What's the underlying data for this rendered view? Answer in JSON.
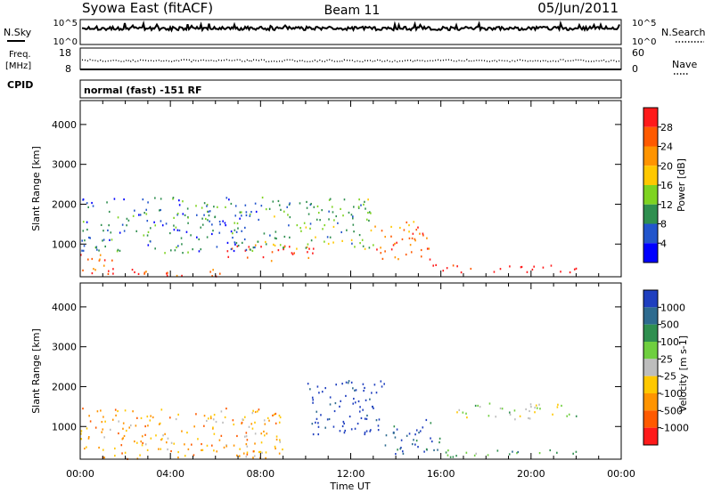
{
  "header": {
    "title_left": "Syowa East (fitACF)",
    "title_center": "Beam 11",
    "title_right": "05/Jun/2011"
  },
  "noise_panel": {
    "left_label": "N.Sky",
    "right_label": "N.Search",
    "left_ticks": [
      "10^5",
      "10^0"
    ],
    "right_ticks": [
      "10^5",
      "10^0"
    ]
  },
  "freq_panel": {
    "left_label_1": "Freq.",
    "left_label_2": "[MHz]",
    "right_label": "Nave",
    "left_ticks": [
      "18",
      "8"
    ],
    "right_ticks": [
      "60",
      "0"
    ]
  },
  "cpid": {
    "label": "CPID",
    "value": "normal (fast) -151 RF"
  },
  "chart_data": [
    {
      "type": "heatmap",
      "name": "Power",
      "ylabel": "Slant Range [km]",
      "xlabel": "",
      "xlim": [
        "00:00",
        "24:00"
      ],
      "ylim": [
        180,
        4600
      ],
      "y_ticks": [
        "4000",
        "3000",
        "2000",
        "1000"
      ],
      "colorbar_label": "Power [dB]",
      "colorbar_ticks": [
        "28",
        "24",
        "20",
        "16",
        "12",
        "8",
        "4"
      ],
      "colorbar_colors": [
        "#ff1a1a",
        "#ff5a00",
        "#ff9400",
        "#ffc800",
        "#7ed321",
        "#2f8f4f",
        "#2255cc",
        "#0000ff"
      ],
      "echo_regions": [
        {
          "t0": 0.0,
          "t1": 1.5,
          "r0": 200,
          "r1": 800,
          "level": 1
        },
        {
          "t0": 1.0,
          "t1": 6.5,
          "r0": 200,
          "r1": 400,
          "level": 1
        },
        {
          "t0": 6.5,
          "t1": 10.5,
          "r0": 600,
          "r1": 1000,
          "level": 1
        },
        {
          "t0": 8.0,
          "t1": 13.0,
          "r0": 900,
          "r1": 2200,
          "level": 5
        },
        {
          "t0": 13.0,
          "t1": 15.5,
          "r0": 600,
          "r1": 1600,
          "level": 2
        },
        {
          "t0": 15.5,
          "t1": 22.0,
          "r0": 300,
          "r1": 500,
          "level": 0
        },
        {
          "t0": 0.0,
          "t1": 8.0,
          "r0": 800,
          "r1": 2200,
          "level": 6
        }
      ]
    },
    {
      "type": "heatmap",
      "name": "Velocity",
      "ylabel": "Slant Range [km]",
      "xlabel": "Time UT",
      "x_ticks": [
        "00:00",
        "04:00",
        "08:00",
        "12:00",
        "16:00",
        "20:00",
        "00:00"
      ],
      "xlim": [
        "00:00",
        "24:00"
      ],
      "ylim": [
        180,
        4600
      ],
      "y_ticks": [
        "4000",
        "3000",
        "2000",
        "1000"
      ],
      "colorbar_label": "Velocity [m s-1]",
      "colorbar_ticks": [
        "1000",
        "500",
        "100",
        "25",
        "-25",
        "-100",
        "-500",
        "-1000"
      ],
      "colorbar_colors": [
        "#1f3fbf",
        "#2e6b8f",
        "#2f8f4f",
        "#6fcf3f",
        "#bdbdbd",
        "#ffc800",
        "#ff9400",
        "#ff5a00",
        "#ff1a1a"
      ],
      "echo_regions": [
        {
          "t0": 0.0,
          "t1": 9.0,
          "r0": 200,
          "r1": 1500,
          "level": 6
        },
        {
          "t0": 10.0,
          "t1": 13.5,
          "r0": 800,
          "r1": 2200,
          "level": 0
        },
        {
          "t0": 13.5,
          "t1": 16.0,
          "r0": 300,
          "r1": 1200,
          "level": 1
        },
        {
          "t0": 16.0,
          "t1": 22.0,
          "r0": 250,
          "r1": 450,
          "level": 3
        },
        {
          "t0": 16.5,
          "t1": 22.0,
          "r0": 1200,
          "r1": 1600,
          "level": 4
        }
      ]
    }
  ]
}
